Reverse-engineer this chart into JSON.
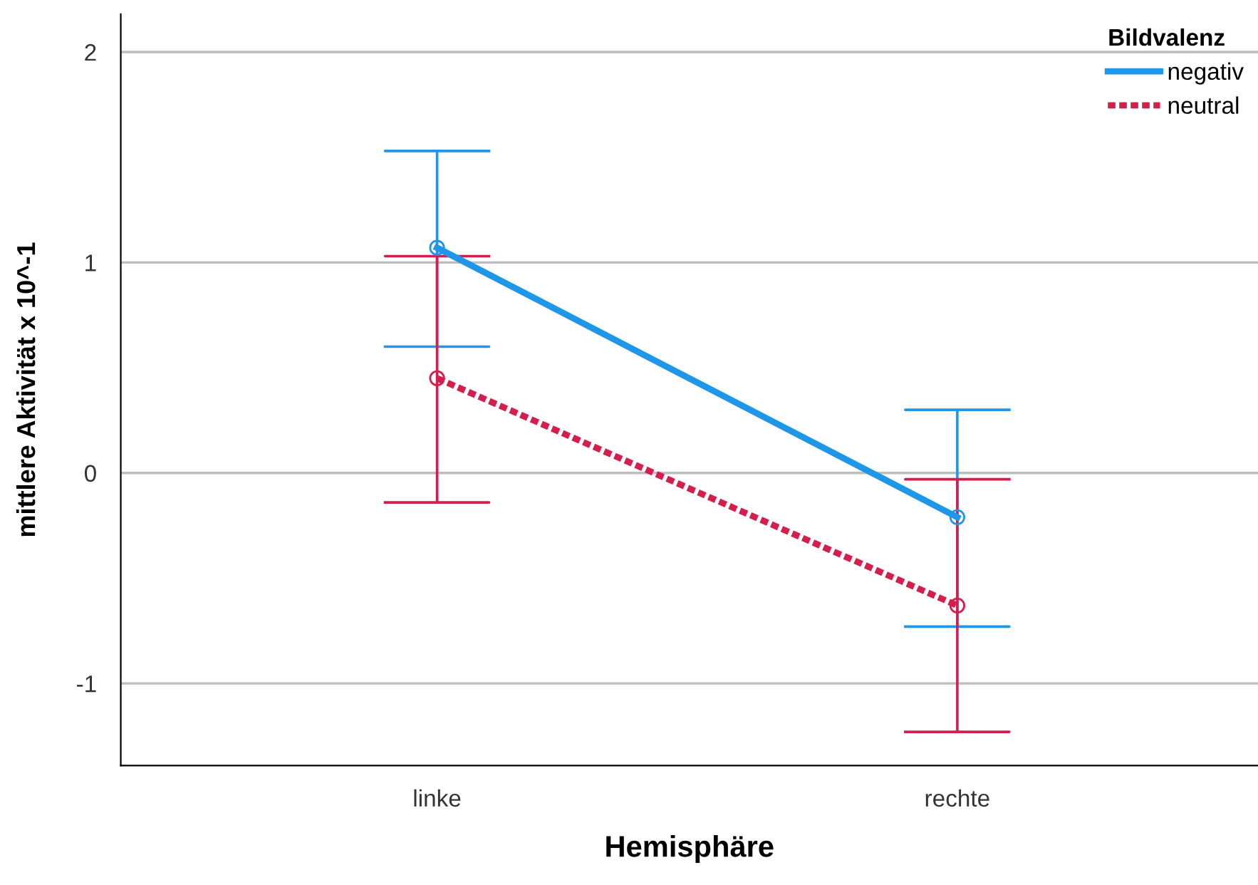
{
  "chart_data": {
    "type": "line",
    "xlabel": "Hemisphäre",
    "ylabel": "mittlere Aktivität x 10^-1",
    "legend_title": "Bildvalenz",
    "categories": [
      "linke",
      "rechte"
    ],
    "series": [
      {
        "name": "negativ",
        "color": "#1f97e8",
        "values": [
          1.07,
          -0.21
        ],
        "errors": [
          [
            0.6,
            1.53
          ],
          [
            -0.73,
            0.3
          ]
        ],
        "line_style": "solid"
      },
      {
        "name": "neutral",
        "color": "#d51e4e",
        "values": [
          0.45,
          -0.63
        ],
        "errors": [
          [
            -0.14,
            1.03
          ],
          [
            -1.23,
            -0.03
          ]
        ],
        "line_style": "dotted"
      }
    ],
    "ylim": [
      -1.39,
      2.18
    ],
    "yticks": [
      -1,
      0,
      1,
      2
    ],
    "grid": "y",
    "legend": "top right",
    "marker": "circle"
  }
}
